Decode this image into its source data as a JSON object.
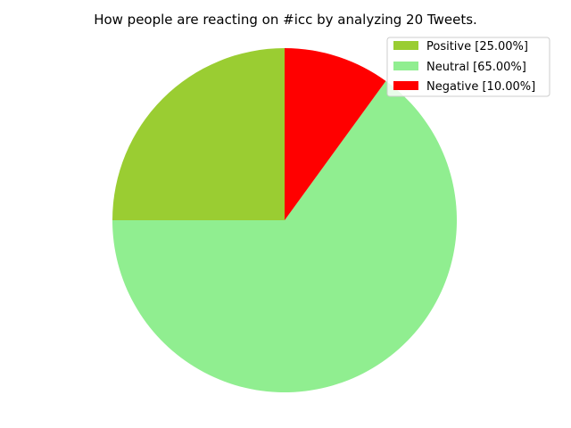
{
  "chart_data": {
    "type": "pie",
    "title": "How people are reacting on #icc by analyzing 20 Tweets.",
    "legend_placement": "top-right",
    "start_angle_deg": 90,
    "direction": "counterclockwise",
    "slices": [
      {
        "label": "Positive [25.00%]",
        "value": 25,
        "color": "#9acd32"
      },
      {
        "label": "Neutral [65.00%]",
        "value": 65,
        "color": "#90ee90"
      },
      {
        "label": "Negative [10.00%]",
        "value": 10,
        "color": "#ff0000"
      }
    ]
  }
}
